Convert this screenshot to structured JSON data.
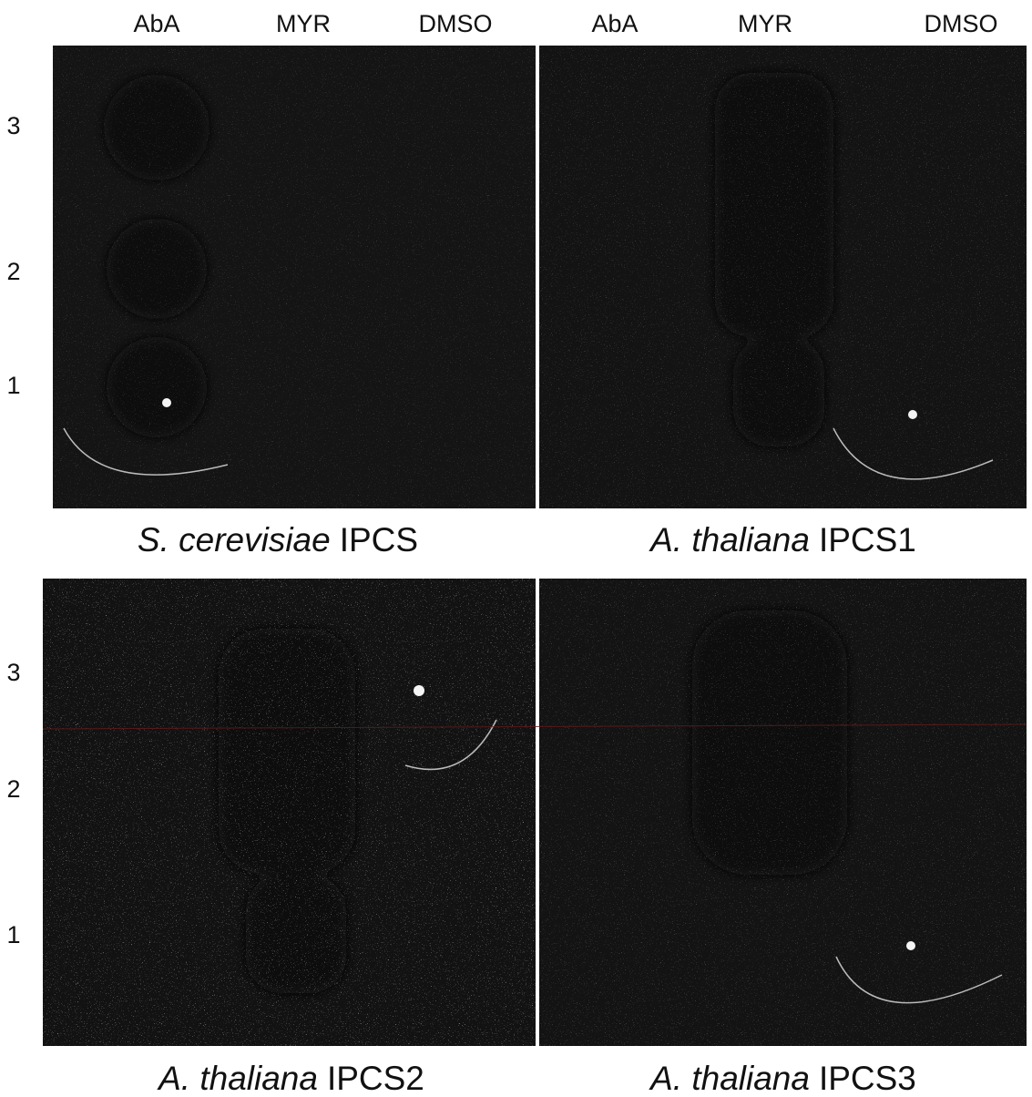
{
  "column_labels": [
    "AbA",
    "MYR",
    "DMSO",
    "AbA",
    "MYR",
    "DMSO"
  ],
  "row_labels": [
    [
      "3",
      "2",
      "1"
    ],
    [
      "3",
      "2",
      "1"
    ]
  ],
  "panels": [
    {
      "species": "S. cerevisiae",
      "gene": "IPCS"
    },
    {
      "species": "A. thaliana",
      "gene": "IPCS1"
    },
    {
      "species": "A. thaliana",
      "gene": "IPCS2"
    },
    {
      "species": "A. thaliana",
      "gene": "IPCS3"
    }
  ]
}
